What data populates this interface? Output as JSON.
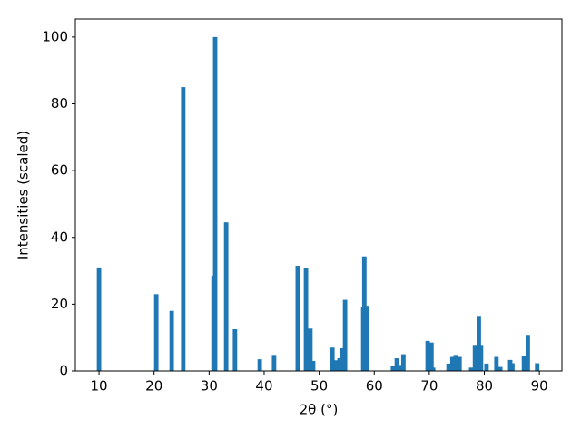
{
  "chart_data": {
    "type": "bar",
    "xlabel": "2θ (°)",
    "ylabel": "Intensities (scaled)",
    "x": [
      10.0,
      20.4,
      23.2,
      25.3,
      30.8,
      31.1,
      33.1,
      34.7,
      39.2,
      41.8,
      46.1,
      47.6,
      48.4,
      48.9,
      52.4,
      53.1,
      53.7,
      54.2,
      54.7,
      58.0,
      58.2,
      58.7,
      63.4,
      64.1,
      64.8,
      65.3,
      69.7,
      70.4,
      70.7,
      73.5,
      74.2,
      74.8,
      75.5,
      77.6,
      78.3,
      79.0,
      79.4,
      80.4,
      82.2,
      82.9,
      84.7,
      85.1,
      87.2,
      87.9,
      89.6
    ],
    "values": [
      31,
      23,
      18,
      85,
      28.5,
      100,
      44.5,
      12.5,
      3.5,
      4.8,
      31.5,
      30.8,
      12.7,
      3,
      7,
      3.2,
      3.8,
      6.8,
      21.3,
      19,
      34.3,
      19.5,
      1.5,
      3.8,
      1.8,
      5,
      9,
      8.5,
      1,
      2.2,
      4.2,
      4.8,
      4.2,
      1,
      7.8,
      16.5,
      7.8,
      2.2,
      4.2,
      1.2,
      3.3,
      2.3,
      4.5,
      10.8,
      2.3
    ],
    "color": "#1f77b4",
    "xlim": [
      5.7,
      94.1
    ],
    "xticks": [
      10,
      20,
      30,
      40,
      50,
      60,
      70,
      80,
      90
    ],
    "ylim": [
      0,
      105.4
    ],
    "yticks": [
      0,
      20,
      40,
      60,
      80,
      100
    ]
  }
}
